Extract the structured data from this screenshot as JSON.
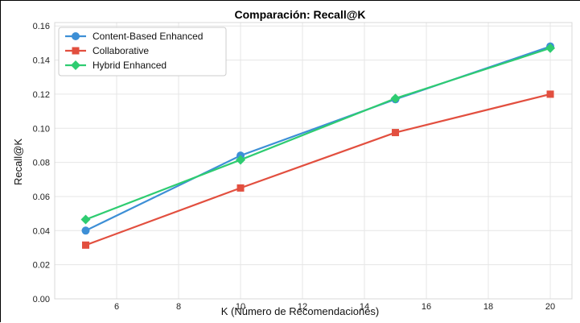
{
  "chart_data": {
    "type": "line",
    "title": "Comparación: Recall@K",
    "xlabel": "K (Número de Recomendaciones)",
    "ylabel": "Recall@K",
    "xlim": [
      4,
      20.7
    ],
    "ylim": [
      0.0,
      0.162
    ],
    "xticks": [
      6,
      8,
      10,
      12,
      14,
      16,
      18,
      20
    ],
    "yticks": [
      0.0,
      0.02,
      0.04,
      0.06,
      0.08,
      0.1,
      0.12,
      0.14,
      0.16
    ],
    "ytick_labels": [
      "0.00",
      "0.02",
      "0.04",
      "0.06",
      "0.08",
      "0.10",
      "0.12",
      "0.14",
      "0.16"
    ],
    "grid": true,
    "legend_position": "top-left",
    "x": [
      5,
      10,
      15,
      20
    ],
    "series": [
      {
        "name": "Content-Based Enhanced",
        "color": "#3d8fd6",
        "marker": "circle",
        "values": [
          0.04,
          0.084,
          0.117,
          0.148
        ]
      },
      {
        "name": "Collaborative",
        "color": "#e24f3f",
        "marker": "square",
        "values": [
          0.0315,
          0.065,
          0.0975,
          0.12
        ]
      },
      {
        "name": "Hybrid Enhanced",
        "color": "#2ecc71",
        "marker": "diamond",
        "values": [
          0.0465,
          0.0815,
          0.1175,
          0.147
        ]
      }
    ]
  }
}
